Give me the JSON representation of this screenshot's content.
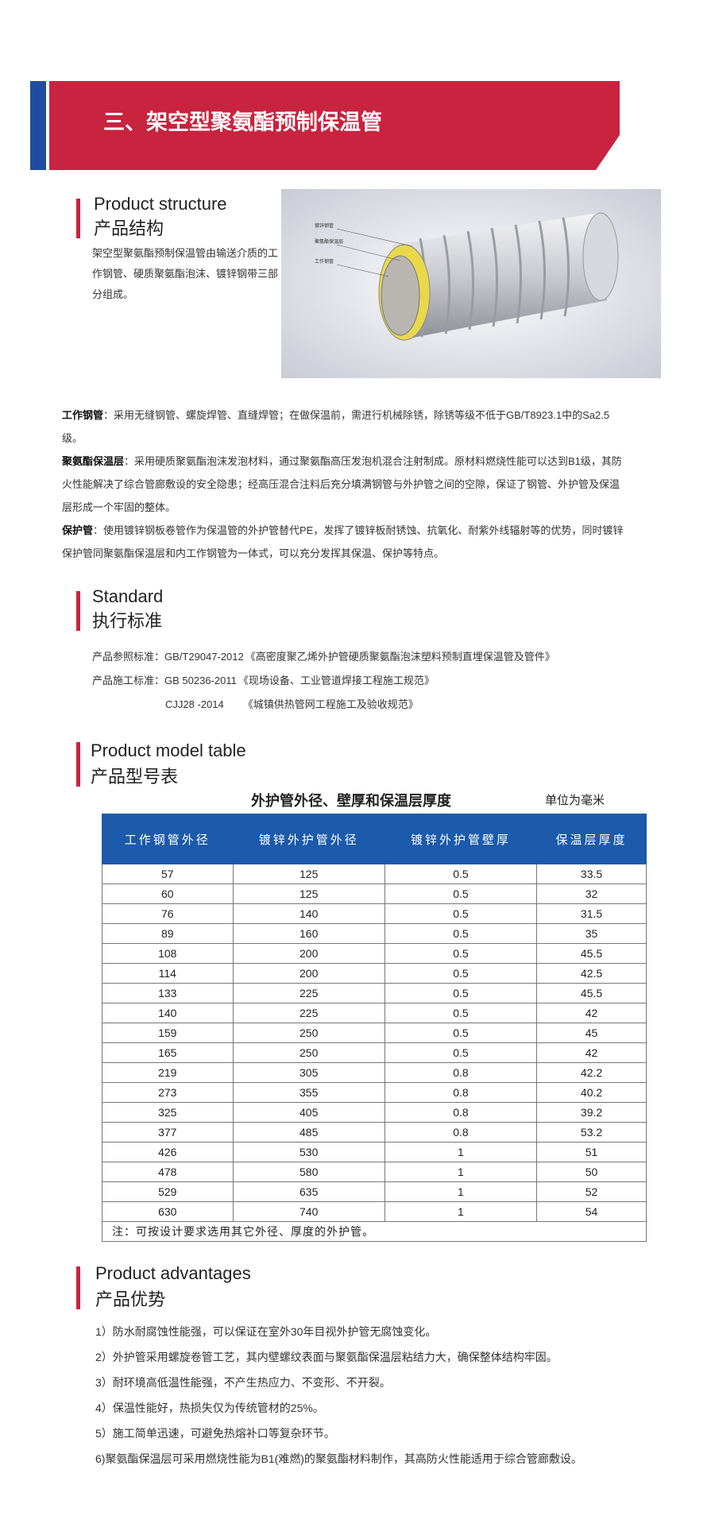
{
  "banner": {
    "title": "三、架空型聚氨酯预制保温管"
  },
  "structure": {
    "heading_en": "Product structure",
    "heading_cn": "产品结构",
    "text": "架空型聚氨酯预制保温管由输送介质的工作钢管、硬质聚氨酯泡沫、镀锌钢带三部分组成。",
    "labels": [
      "镀锌钢管",
      "聚氨酯保温层",
      "工作钢管"
    ]
  },
  "details": [
    {
      "label": "工作钢管",
      "text": "：采用无缝钢管、螺旋焊管、直缝焊管；在做保温前，需进行机械除锈，除锈等级不低于GB/T8923.1中的Sa2.5级。"
    },
    {
      "label": "聚氨酯保温层",
      "text": "：采用硬质聚氨酯泡沫发泡材料，通过聚氨酯高压发泡机混合注射制成。原材料燃烧性能可以达到B1级，其防火性能解决了综合管廊敷设的安全隐患；经高压混合注料后充分填满钢管与外护管之间的空隙，保证了钢管、外护管及保温层形成一个牢固的整体。"
    },
    {
      "label": "保护管",
      "text": "：使用镀锌钢板卷管作为保温管的外护管替代PE，发挥了镀锌板耐锈蚀、抗氧化、耐紫外线辐射等的优势，同时镀锌保护管同聚氨酯保温层和内工作钢管为一体式，可以充分发挥其保温、保护等特点。"
    }
  ],
  "standard": {
    "heading_en": "Standard",
    "heading_cn": "执行标准",
    "lines": [
      {
        "label": "产品参照标准：",
        "code": "GB/T29047-2012",
        "name": "《高密度聚乙烯外护管硬质聚氨酯泡沫塑料预制直埋保温管及管件》"
      },
      {
        "label": "产品施工标准：",
        "code": "GB 50236-2011",
        "name": "《现场设备、工业管道焊接工程施工规范》"
      },
      {
        "label": "",
        "code": "CJJ28 -2014",
        "name": "《城镇供热管网工程施工及验收规范》"
      }
    ]
  },
  "model": {
    "heading_en": "Product model table",
    "heading_cn": "产品型号表",
    "table_title": "外护管外径、壁厚和保温层厚度",
    "unit": "单位为毫米",
    "table": {
      "header": [
        "工作钢管外径",
        "镀锌外护管外径",
        "镀锌外护管壁厚",
        "保温层厚度"
      ],
      "rows": [
        [
          57,
          125,
          0.5,
          33.5
        ],
        [
          60,
          125,
          0.5,
          32
        ],
        [
          76,
          140,
          0.5,
          31.5
        ],
        [
          89,
          160,
          0.5,
          35
        ],
        [
          108,
          200,
          0.5,
          45.5
        ],
        [
          114,
          200,
          0.5,
          42.5
        ],
        [
          133,
          225,
          0.5,
          45.5
        ],
        [
          140,
          225,
          0.5,
          42
        ],
        [
          159,
          250,
          0.5,
          45
        ],
        [
          165,
          250,
          0.5,
          42
        ],
        [
          219,
          305,
          0.8,
          42.2
        ],
        [
          273,
          355,
          0.8,
          40.2
        ],
        [
          325,
          405,
          0.8,
          39.2
        ],
        [
          377,
          485,
          0.8,
          53.2
        ],
        [
          426,
          530,
          1,
          51
        ],
        [
          478,
          580,
          1,
          50
        ],
        [
          529,
          635,
          1,
          52
        ],
        [
          630,
          740,
          1,
          54
        ]
      ],
      "note": "注：可按设计要求选用其它外径、厚度的外护管。"
    }
  },
  "advantages": {
    "heading_en": "Product advantages",
    "heading_cn": "产品优势",
    "items": [
      "1）防水耐腐蚀性能强，可以保证在室外30年目视外护管无腐蚀变化。",
      "2）外护管采用螺旋卷管工艺，其内壁螺纹表面与聚氨酯保温层粘结力大，确保整体结构牢固。",
      "3）耐环境高低温性能强，不产生热应力、不变形、不开裂。",
      "4）保温性能好，热损失仅为传统管材的25%。",
      "5）施工简单迅速，可避免热熔补口等复杂环节。",
      "6)聚氨酯保温层可采用燃烧性能为B1(难燃)的聚氨酯材料制作，其高防火性能适用于综合管廊敷设。"
    ]
  }
}
